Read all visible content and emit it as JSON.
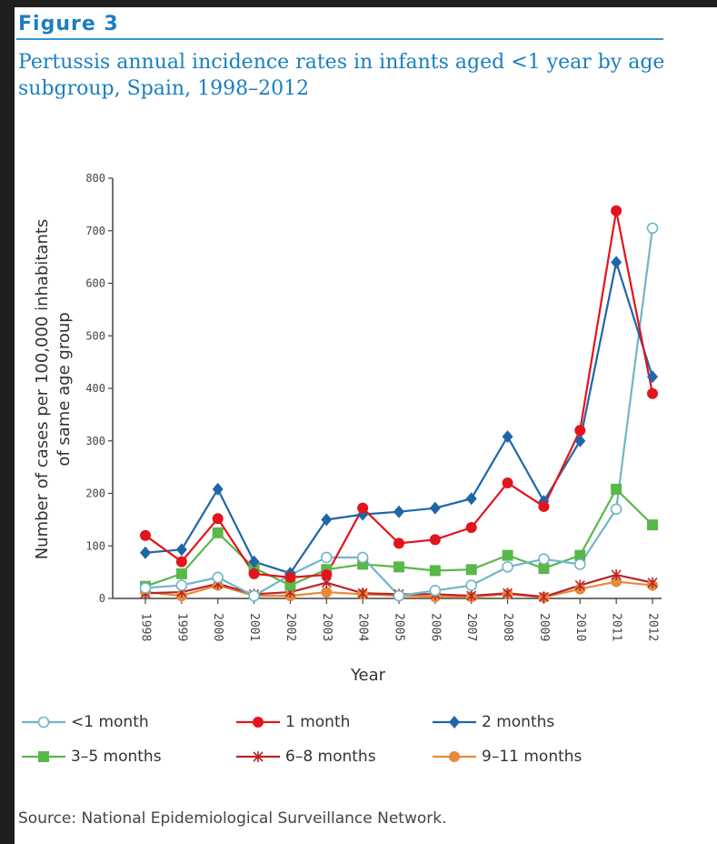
{
  "figure_label": "Figure 3",
  "title": "Pertussis annual incidence rates in infants aged <1 year by age subgroup, Spain, 1998–2012",
  "source": "Source: National Epidemiological Surveillance Network.",
  "chart_data": {
    "type": "line",
    "xlabel": "Year",
    "ylabel": "Number of cases per 100,000 inhabitants of same age group",
    "ylim": [
      0,
      800
    ],
    "yticks": [
      "0",
      "100",
      "200",
      "300",
      "400",
      "500",
      "600",
      "700",
      "800"
    ],
    "categories": [
      "1998",
      "1999",
      "2000",
      "2001",
      "2002",
      "2003",
      "2004",
      "2005",
      "2006",
      "2007",
      "2008",
      "2009",
      "2010",
      "2011",
      "2012"
    ],
    "legend_placement": "bottom",
    "series": [
      {
        "name": "<1 month",
        "color": "#6fb6c8",
        "marker": "circle-open",
        "values": [
          20,
          25,
          40,
          5,
          45,
          78,
          78,
          5,
          15,
          25,
          60,
          75,
          65,
          170,
          705
        ]
      },
      {
        "name": "1 month",
        "color": "#e3141c",
        "marker": "circle",
        "values": [
          120,
          70,
          152,
          47,
          40,
          45,
          172,
          105,
          112,
          135,
          220,
          175,
          320,
          738,
          390
        ]
      },
      {
        "name": "2 months",
        "color": "#1f66a8",
        "marker": "diamond",
        "values": [
          87,
          93,
          208,
          70,
          48,
          150,
          160,
          165,
          172,
          190,
          308,
          185,
          300,
          640,
          422
        ]
      },
      {
        "name": "3–5 months",
        "color": "#5ab74a",
        "marker": "square",
        "values": [
          23,
          47,
          125,
          58,
          25,
          55,
          65,
          60,
          53,
          55,
          82,
          57,
          82,
          208,
          140
        ]
      },
      {
        "name": "6–8 months",
        "color": "#b8252a",
        "marker": "star",
        "values": [
          10,
          12,
          28,
          8,
          12,
          30,
          10,
          8,
          8,
          5,
          10,
          3,
          25,
          45,
          30
        ]
      },
      {
        "name": "9–11 months",
        "color": "#e88a3a",
        "marker": "circle",
        "values": [
          12,
          5,
          25,
          5,
          5,
          12,
          8,
          5,
          3,
          3,
          8,
          2,
          18,
          32,
          25
        ]
      }
    ]
  }
}
